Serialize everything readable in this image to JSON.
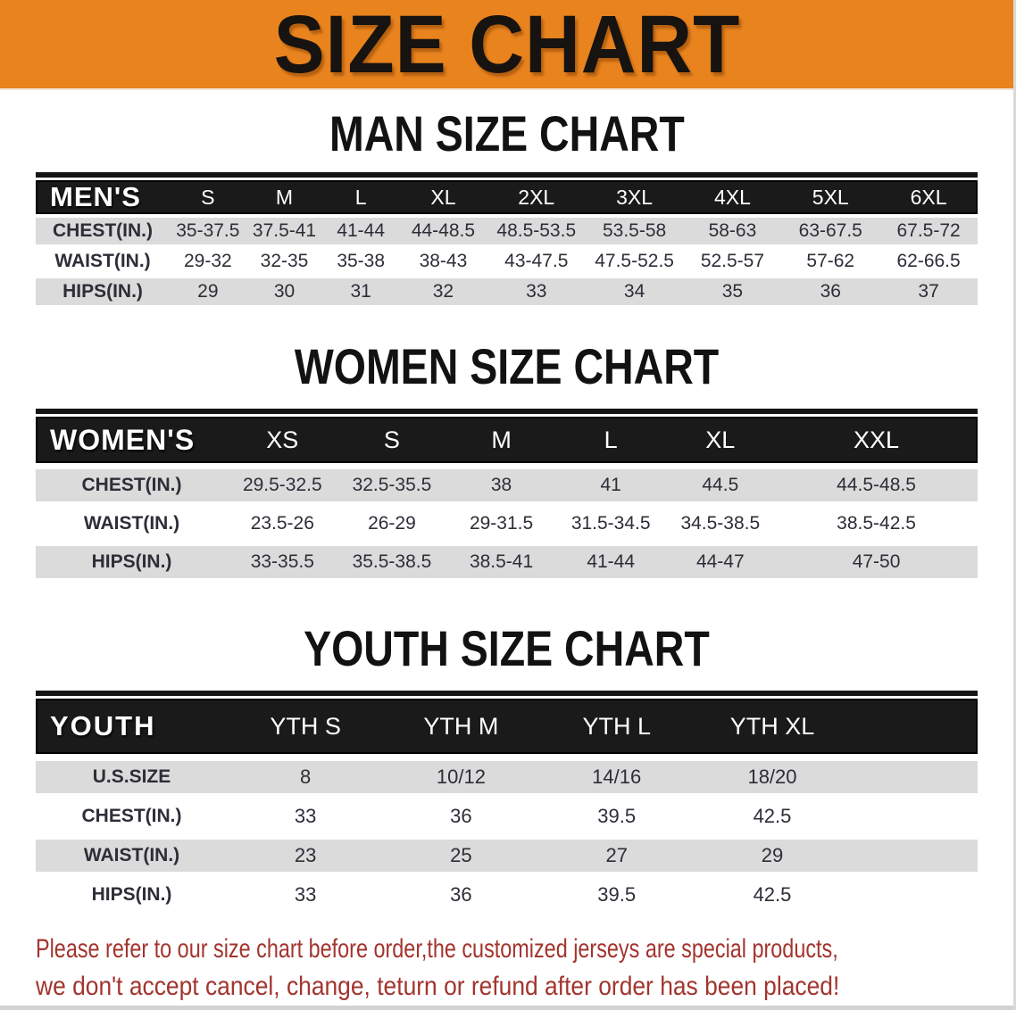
{
  "banner": {
    "title": "SIZE CHART",
    "bg_color": "#E8831E"
  },
  "colors": {
    "banner_bg": "#E8831E",
    "table_header_bg": "#1A1A1A",
    "row_alt_bg": "#DBDBDB",
    "cell_text": "#2D2E37",
    "note_text": "#A3342E"
  },
  "sections": [
    {
      "heading": "MAN SIZE CHART",
      "table": {
        "label": "MEN'S",
        "columns": [
          "S",
          "M",
          "L",
          "XL",
          "2XL",
          "3XL",
          "4XL",
          "5XL",
          "6XL"
        ],
        "rows": [
          {
            "label": "CHEST(IN.)",
            "values": [
              "35-37.5",
              "37.5-41",
              "41-44",
              "44-48.5",
              "48.5-53.5",
              "53.5-58",
              "58-63",
              "63-67.5",
              "67.5-72"
            ]
          },
          {
            "label": "WAIST(IN.)",
            "values": [
              "29-32",
              "32-35",
              "35-38",
              "38-43",
              "43-47.5",
              "47.5-52.5",
              "52.5-57",
              "57-62",
              "62-66.5"
            ]
          },
          {
            "label": "HIPS(IN.)",
            "values": [
              "29",
              "30",
              "31",
              "32",
              "33",
              "34",
              "35",
              "36",
              "37"
            ]
          }
        ]
      }
    },
    {
      "heading": "WOMEN SIZE CHART",
      "table": {
        "label": "WOMEN'S",
        "columns": [
          "XS",
          "S",
          "M",
          "L",
          "XL",
          "XXL"
        ],
        "rows": [
          {
            "label": "CHEST(IN.)",
            "values": [
              "29.5-32.5",
              "32.5-35.5",
              "38",
              "41",
              "44.5",
              "44.5-48.5"
            ]
          },
          {
            "label": "WAIST(IN.)",
            "values": [
              "23.5-26",
              "26-29",
              "29-31.5",
              "31.5-34.5",
              "34.5-38.5",
              "38.5-42.5"
            ]
          },
          {
            "label": "HIPS(IN.)",
            "values": [
              "33-35.5",
              "35.5-38.5",
              "38.5-41",
              "41-44",
              "44-47",
              "47-50"
            ]
          }
        ]
      }
    },
    {
      "heading": "YOUTH SIZE CHART",
      "table": {
        "label": "YOUTH",
        "columns": [
          "YTH S",
          "YTH M",
          "YTH L",
          "YTH XL"
        ],
        "rows": [
          {
            "label": "U.S.SIZE",
            "values": [
              "8",
              "10/12",
              "14/16",
              "18/20"
            ]
          },
          {
            "label": "CHEST(IN.)",
            "values": [
              "33",
              "36",
              "39.5",
              "42.5"
            ]
          },
          {
            "label": "WAIST(IN.)",
            "values": [
              "23",
              "25",
              "27",
              "29"
            ]
          },
          {
            "label": "HIPS(IN.)",
            "values": [
              "33",
              "36",
              "39.5",
              "42.5"
            ]
          }
        ]
      }
    }
  ],
  "footer": {
    "line1": "Please refer to our size chart before order,the customized jerseys are special products,",
    "line2": "we don't accept cancel, change, teturn or refund after order has been placed!"
  }
}
